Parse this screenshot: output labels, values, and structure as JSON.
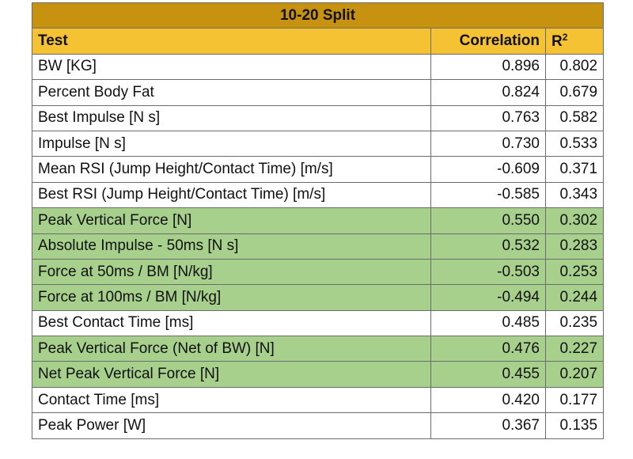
{
  "table": {
    "title": "10-20 Split",
    "headers": {
      "test": "Test",
      "correlation": "Correlation",
      "r2_base": "R",
      "r2_sup": "2"
    },
    "highlight_color": "#a8d08d",
    "title_color": "#c6920f",
    "header_color": "#f4c233",
    "rows": [
      {
        "test": "BW [KG]",
        "correlation": "0.896",
        "r2": "0.802",
        "highlight": false
      },
      {
        "test": "Percent Body Fat",
        "correlation": "0.824",
        "r2": "0.679",
        "highlight": false
      },
      {
        "test": "Best Impulse [N s]",
        "correlation": "0.763",
        "r2": "0.582",
        "highlight": false
      },
      {
        "test": "Impulse [N s]",
        "correlation": "0.730",
        "r2": "0.533",
        "highlight": false
      },
      {
        "test": "Mean RSI (Jump Height/Contact Time) [m/s]",
        "correlation": "-0.609",
        "r2": "0.371",
        "highlight": false
      },
      {
        "test": "Best RSI (Jump Height/Contact Time) [m/s]",
        "correlation": "-0.585",
        "r2": "0.343",
        "highlight": false
      },
      {
        "test": "Peak Vertical Force [N]",
        "correlation": "0.550",
        "r2": "0.302",
        "highlight": true
      },
      {
        "test": "Absolute Impulse - 50ms [N s]",
        "correlation": "0.532",
        "r2": "0.283",
        "highlight": true
      },
      {
        "test": "Force at 50ms / BM [N/kg]",
        "correlation": "-0.503",
        "r2": "0.253",
        "highlight": true
      },
      {
        "test": "Force at 100ms / BM [N/kg]",
        "correlation": "-0.494",
        "r2": "0.244",
        "highlight": true
      },
      {
        "test": "Best Contact Time [ms]",
        "correlation": "0.485",
        "r2": "0.235",
        "highlight": false
      },
      {
        "test": "Peak Vertical Force (Net of BW) [N]",
        "correlation": "0.476",
        "r2": "0.227",
        "highlight": true
      },
      {
        "test": "Net Peak Vertical Force [N]",
        "correlation": "0.455",
        "r2": "0.207",
        "highlight": true
      },
      {
        "test": "Contact Time [ms]",
        "correlation": "0.420",
        "r2": "0.177",
        "highlight": false
      },
      {
        "test": "Peak Power [W]",
        "correlation": "0.367",
        "r2": "0.135",
        "highlight": false
      }
    ]
  }
}
